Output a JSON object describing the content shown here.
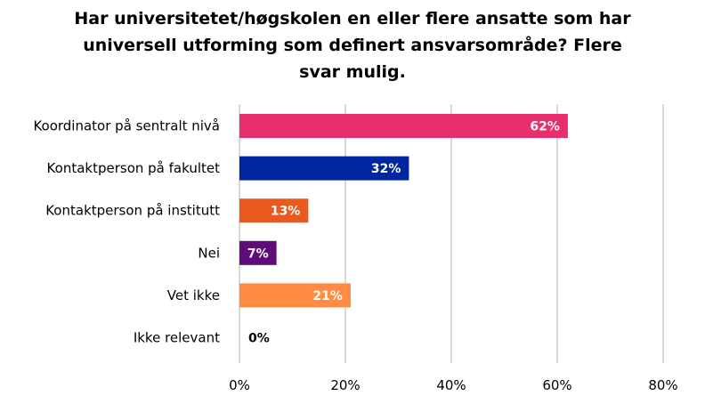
{
  "chart_data": {
    "type": "bar",
    "orientation": "horizontal",
    "title": "Har universitetet/høgskolen en eller flere ansatte som har universell utforming som definert ansvarsområde? Flere svar mulig.",
    "title_lines": [
      "Har universitetet/høgskolen en eller flere ansatte som har",
      "universell utforming som definert ansvarsområde? Flere",
      "svar mulig."
    ],
    "categories": [
      "Koordinator på sentralt nivå",
      "Kontaktperson på fakultet",
      "Kontaktperson på institutt",
      "Nei",
      "Vet ikke",
      "Ikke relevant"
    ],
    "values": [
      62,
      32,
      13,
      7,
      21,
      0
    ],
    "data_labels": [
      "62%",
      "32%",
      "13%",
      "7%",
      "21%",
      "0%"
    ],
    "colors": [
      "#E82E6F",
      "#0026A0",
      "#EA5A1F",
      "#5E0C78",
      "#FF8C42",
      "#000000"
    ],
    "xlim": [
      0,
      80
    ],
    "xticks": [
      0,
      20,
      40,
      60,
      80
    ],
    "xtick_labels": [
      "0%",
      "20%",
      "40%",
      "60%",
      "80%"
    ],
    "grid": "vertical",
    "legend": "none",
    "xlabel": "",
    "ylabel": ""
  }
}
